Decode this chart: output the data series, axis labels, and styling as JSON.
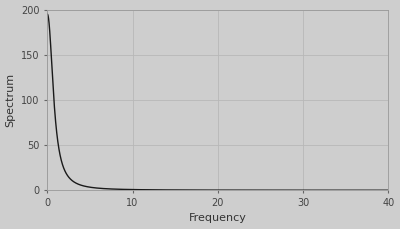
{
  "title": "",
  "xlabel": "Frequency",
  "ylabel": "Spectrum",
  "xlim": [
    0,
    40
  ],
  "ylim": [
    0,
    200
  ],
  "xticks": [
    0,
    10,
    20,
    30,
    40
  ],
  "yticks": [
    0,
    50,
    100,
    150,
    200
  ],
  "line_color": "#1a1a1a",
  "line_width": 1.0,
  "background_color": "#cecece",
  "plot_bg_color": "#cecece",
  "grid_color": "#b8b8b8",
  "peak_value": 195,
  "f0": 0.8,
  "n": 2.2
}
